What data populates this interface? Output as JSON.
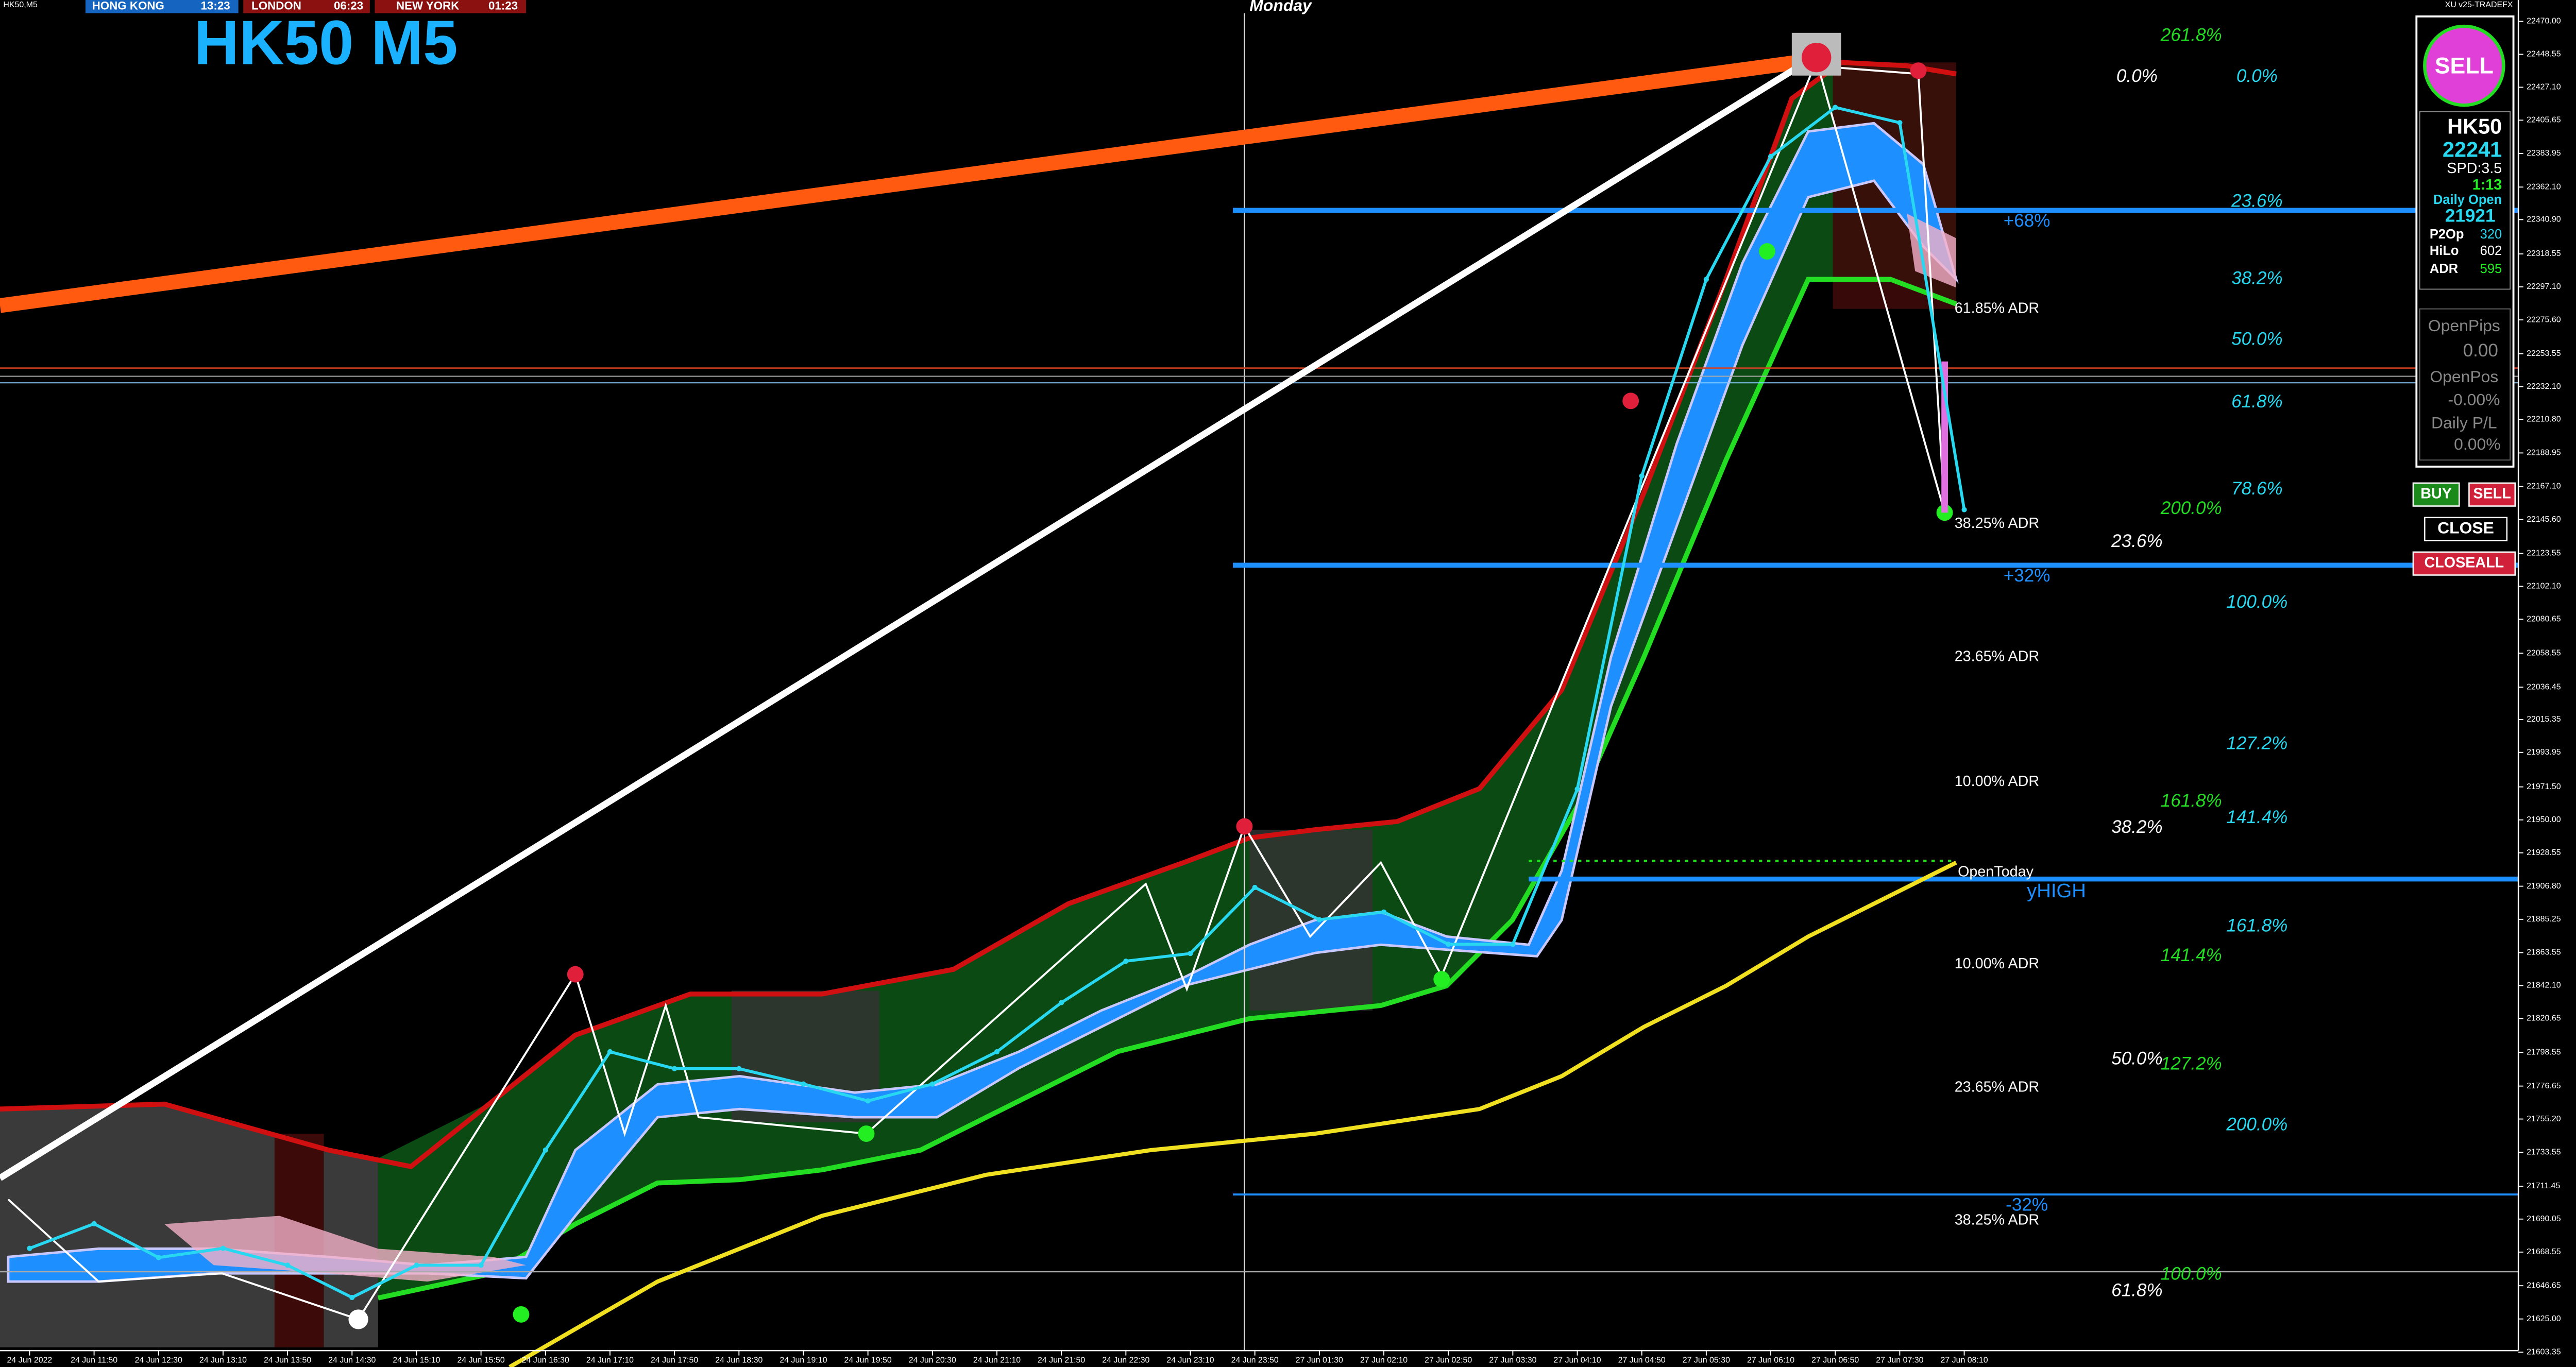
{
  "header": {
    "symbol": "HK50,M5",
    "clocks": [
      {
        "city": "HONG KONG",
        "time": "13:23"
      },
      {
        "city": "LONDON",
        "time": "06:23"
      },
      {
        "city": "NEW YORK",
        "time": "01:23"
      }
    ],
    "title": "HK50 M5",
    "day_label": "Monday",
    "indicator": "XU v25-TRADEFX"
  },
  "chart_data": {
    "type": "line",
    "categories": [
      "24 Jun 2022",
      "24 Jun 11:50",
      "24 Jun 12:30",
      "24 Jun 13:10",
      "24 Jun 13:50",
      "24 Jun 14:30",
      "24 Jun 15:10",
      "24 Jun 15:50",
      "24 Jun 16:30",
      "24 Jun 17:10",
      "24 Jun 17:50",
      "24 Jun 18:30",
      "24 Jun 19:10",
      "24 Jun 19:50",
      "24 Jun 20:30",
      "24 Jun 21:10",
      "24 Jun 21:50",
      "24 Jun 22:30",
      "24 Jun 23:10",
      "24 Jun 23:50",
      "27 Jun 01:30",
      "27 Jun 02:10",
      "27 Jun 02:50",
      "27 Jun 03:30",
      "27 Jun 04:10",
      "27 Jun 04:50",
      "27 Jun 05:30",
      "27 Jun 06:10",
      "27 Jun 06:50",
      "27 Jun 07:30",
      "27 Jun 08:10"
    ],
    "values": [
      21671,
      21687,
      21665,
      21671,
      21660,
      21639,
      21660,
      21660,
      21735,
      21799,
      21788,
      21788,
      21778,
      21767,
      21778,
      21799,
      21831,
      21858,
      21863,
      21906,
      21885,
      21890,
      21869,
      21869,
      21970,
      22174,
      22302,
      22382,
      22414,
      22404,
      22152
    ],
    "color": "#27d8f0",
    "ylim": [
      21603.35,
      22470.0
    ],
    "yticks": [
      {
        "value": 22470,
        "label": "22470.00"
      },
      {
        "value": 22448.55,
        "label": "22448.55"
      },
      {
        "value": 22427.1,
        "label": "22427.10"
      },
      {
        "value": 22405.65,
        "label": "22405.65"
      },
      {
        "value": 22383.95,
        "label": "22383.95"
      },
      {
        "value": 22362.1,
        "label": "22362.10"
      },
      {
        "value": 22340.9,
        "label": "22340.90"
      },
      {
        "value": 22318.55,
        "label": "22318.55"
      },
      {
        "value": 22297.1,
        "label": "22297.10"
      },
      {
        "value": 22275.6,
        "label": "22275.60"
      },
      {
        "value": 22253.55,
        "label": "22253.55"
      },
      {
        "value": 22232.1,
        "label": "22232.10"
      },
      {
        "value": 22210.8,
        "label": "22210.80"
      },
      {
        "value": 22188.95,
        "label": "22188.95"
      },
      {
        "value": 22167.1,
        "label": "22167.10"
      },
      {
        "value": 22145.6,
        "label": "22145.60"
      },
      {
        "value": 22123.55,
        "label": "22123.55"
      },
      {
        "value": 22102.1,
        "label": "22102.10"
      },
      {
        "value": 22080.65,
        "label": "22080.65"
      },
      {
        "value": 22058.55,
        "label": "22058.55"
      },
      {
        "value": 22036.45,
        "label": "22036.45"
      },
      {
        "value": 22015.35,
        "label": "22015.35"
      },
      {
        "value": 21993.95,
        "label": "21993.95"
      },
      {
        "value": 21971.5,
        "label": "21971.50"
      },
      {
        "value": 21950,
        "label": "21950.00"
      },
      {
        "value": 21928.55,
        "label": "21928.55"
      },
      {
        "value": 21906.8,
        "label": "21906.80"
      },
      {
        "value": 21885.25,
        "label": "21885.25"
      },
      {
        "value": 21863.55,
        "label": "21863.55"
      },
      {
        "value": 21842.1,
        "label": "21842.10"
      },
      {
        "value": 21820.65,
        "label": "21820.65"
      },
      {
        "value": 21798.55,
        "label": "21798.55"
      },
      {
        "value": 21776.65,
        "label": "21776.65"
      },
      {
        "value": 21755.2,
        "label": "21755.20"
      },
      {
        "value": 21733.55,
        "label": "21733.55"
      },
      {
        "value": 21711.45,
        "label": "21711.45"
      },
      {
        "value": 21690.05,
        "label": "21690.05"
      },
      {
        "value": 21668.55,
        "label": "21668.55"
      },
      {
        "value": 21646.65,
        "label": "21646.65"
      },
      {
        "value": 21625,
        "label": "21625.00"
      },
      {
        "value": 21603.35,
        "label": "21603.35"
      }
    ]
  },
  "fib_labels": {
    "green": [
      "261.8%",
      "200.0%",
      "161.8%",
      "141.4%",
      "127.2%",
      "100.0%"
    ],
    "cyan": [
      "0.0%",
      "23.6%",
      "38.2%",
      "50.0%",
      "61.8%",
      "78.6%",
      "100.0%",
      "127.2%",
      "141.4%",
      "161.8%",
      "200.0%"
    ],
    "white": [
      "0.0%",
      "23.6%",
      "38.2%",
      "50.0%",
      "61.8%"
    ]
  },
  "adr_labels": [
    "61.85% ADR",
    "38.25% ADR",
    "23.65% ADR",
    "10.00% ADR",
    "10.00% ADR",
    "23.65% ADR",
    "38.25% ADR"
  ],
  "level_labels": [
    "+68%",
    "+32%",
    "-32%",
    "yHIGH"
  ],
  "open_today": "OpenToday",
  "panel": {
    "signal": "SELL",
    "symbol": "HK50",
    "price": "22241",
    "spread": "SPD:3.5",
    "timer": "1:13",
    "daily_open_label": "Daily Open",
    "daily_open": "21921",
    "stats": [
      {
        "label": "P2Op",
        "value": "320"
      },
      {
        "label": "HiLo",
        "value": "602"
      },
      {
        "label": "ADR",
        "value": "595"
      }
    ],
    "open_pips_label": "OpenPips",
    "open_pips": "0.00",
    "open_pos_label": "OpenPos",
    "open_pos": "-0.00%",
    "daily_pl_label": "Daily P/L",
    "daily_pl": "0.00%"
  },
  "buttons": [
    "BUY",
    "SELL",
    "CLOSE",
    "CLOSEALL"
  ]
}
